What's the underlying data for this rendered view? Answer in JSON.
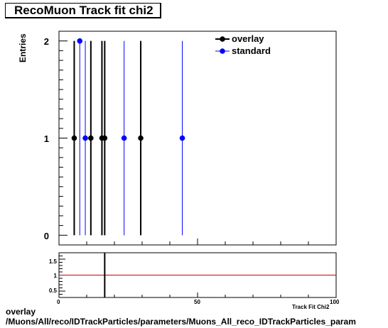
{
  "title": "RecoMuon Track fit chi2",
  "ylabel": "Entries",
  "xlabel": "Track Fit Chi2",
  "footer": {
    "line1": "overlay",
    "line2": "/Muons/All/reco/IDTrackParticles/parameters/Muons_All_reco_IDTrackParticles_param"
  },
  "colors": {
    "overlay": "#000000",
    "standard": "#0000ff",
    "ratio_line": "#cc0000"
  },
  "chart_data": [
    {
      "type": "scatter",
      "title": "RecoMuon Track fit chi2",
      "ylabel": "Entries",
      "xlim": [
        0,
        100
      ],
      "ylim": [
        -0.1,
        2.1
      ],
      "yticks": [
        "0",
        "1",
        "2"
      ],
      "legend_position": "top-right",
      "series": [
        {
          "name": "overlay",
          "color": "#000000",
          "points": [
            [
              5.5,
              1
            ],
            [
              11.5,
              1
            ],
            [
              15.5,
              1
            ],
            [
              16.5,
              1
            ],
            [
              29.5,
              1
            ]
          ]
        },
        {
          "name": "standard",
          "color": "#0000ff",
          "points": [
            [
              7.5,
              2
            ],
            [
              9.5,
              1
            ],
            [
              23.5,
              1
            ],
            [
              44.5,
              1
            ]
          ]
        }
      ]
    },
    {
      "type": "line",
      "xlim": [
        0,
        100
      ],
      "ylim": [
        0.3,
        1.7
      ],
      "xticks": [
        "0",
        "50",
        "100"
      ],
      "yticks": [
        "0.5",
        "1",
        "1.5"
      ],
      "reference_line": 1,
      "bars": [
        [
          16.5,
          1
        ]
      ]
    }
  ]
}
